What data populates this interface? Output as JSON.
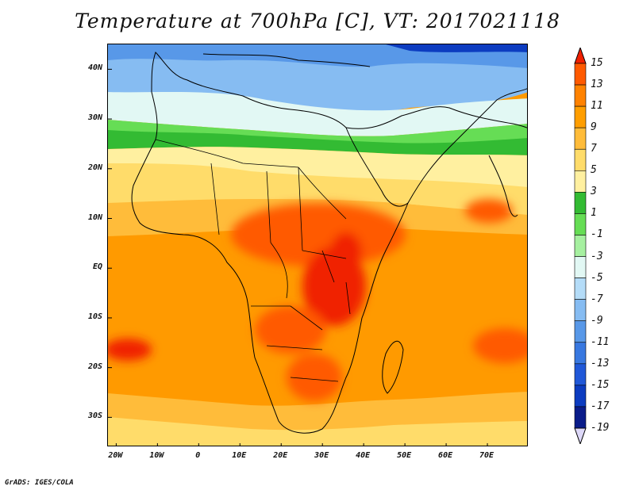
{
  "title": "Temperature at 700hPa [C], VT: 2017021118",
  "credit": "GrADS: IGES/COLA",
  "map": {
    "lon_range": [
      -22,
      80
    ],
    "lat_range": [
      -36,
      45
    ],
    "lat_ticks": [
      {
        "value": 40,
        "label": "40N"
      },
      {
        "value": 30,
        "label": "30N"
      },
      {
        "value": 20,
        "label": "20N"
      },
      {
        "value": 10,
        "label": "10N"
      },
      {
        "value": 0,
        "label": "EQ"
      },
      {
        "value": -10,
        "label": "10S"
      },
      {
        "value": -20,
        "label": "20S"
      },
      {
        "value": -30,
        "label": "30S"
      }
    ],
    "lon_ticks": [
      {
        "value": -20,
        "label": "20W"
      },
      {
        "value": -10,
        "label": "10W"
      },
      {
        "value": 0,
        "label": "0"
      },
      {
        "value": 10,
        "label": "10E"
      },
      {
        "value": 20,
        "label": "20E"
      },
      {
        "value": 30,
        "label": "30E"
      },
      {
        "value": 40,
        "label": "40E"
      },
      {
        "value": 50,
        "label": "50E"
      },
      {
        "value": 60,
        "label": "60E"
      },
      {
        "value": 70,
        "label": "70E"
      }
    ]
  },
  "legend": {
    "labels": [
      "15",
      "13",
      "11",
      "9",
      "7",
      "5",
      "3",
      "1",
      "-1",
      "-3",
      "-5",
      "-7",
      "-9",
      "-11",
      "-13",
      "-15",
      "-17",
      "-19"
    ],
    "colors": [
      "#f02000",
      "#ff5a00",
      "#ff8200",
      "#ff9e00",
      "#ffbc3a",
      "#ffdc6a",
      "#fff0a0",
      "#33bb33",
      "#66dd55",
      "#a6f0a0",
      "#e2f8f4",
      "#b4dcf8",
      "#86bcf2",
      "#5898e8",
      "#3878e0",
      "#2058d8",
      "#0c3cc0",
      "#0a1c8a",
      "#ddd8f8"
    ]
  }
}
